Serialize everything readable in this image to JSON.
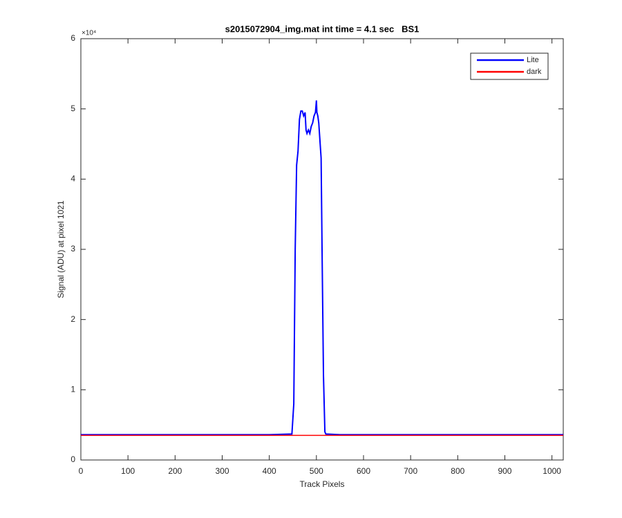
{
  "chart_data": {
    "type": "line",
    "title": "s2015072904_img.mat int time = 4.1 sec   BS1",
    "xlabel": "Track Pixels",
    "ylabel": "Signal (ADU) at pixel 1021",
    "y_multiplier": "×10⁴",
    "xlim": [
      0,
      1024
    ],
    "ylim": [
      0,
      6
    ],
    "xticks": [
      0,
      100,
      200,
      300,
      400,
      500,
      600,
      700,
      800,
      900,
      1000
    ],
    "yticks": [
      0,
      1,
      2,
      3,
      4,
      5,
      6
    ],
    "legend": "northeast",
    "series": [
      {
        "name": "Lite",
        "color": "#0000ff",
        "x": [
          0,
          100,
          200,
          300,
          400,
          448,
          452,
          455,
          458,
          461,
          464,
          467,
          470,
          473,
          476,
          478,
          480,
          483,
          486,
          489,
          492,
          495,
          498,
          500,
          501,
          503,
          505,
          508,
          510,
          512,
          515,
          518,
          520,
          550,
          700,
          900,
          1024
        ],
        "values": [
          0.36,
          0.36,
          0.36,
          0.36,
          0.36,
          0.37,
          0.8,
          3.0,
          4.2,
          4.4,
          4.85,
          4.97,
          4.97,
          4.9,
          4.95,
          4.7,
          4.65,
          4.7,
          4.65,
          4.75,
          4.8,
          4.9,
          4.95,
          5.12,
          4.95,
          4.9,
          4.8,
          4.5,
          4.3,
          3.0,
          1.2,
          0.4,
          0.37,
          0.36,
          0.36,
          0.36,
          0.36
        ]
      },
      {
        "name": "dark",
        "color": "#ff0000",
        "x": [
          0,
          1024
        ],
        "values": [
          0.35,
          0.35
        ]
      }
    ]
  }
}
